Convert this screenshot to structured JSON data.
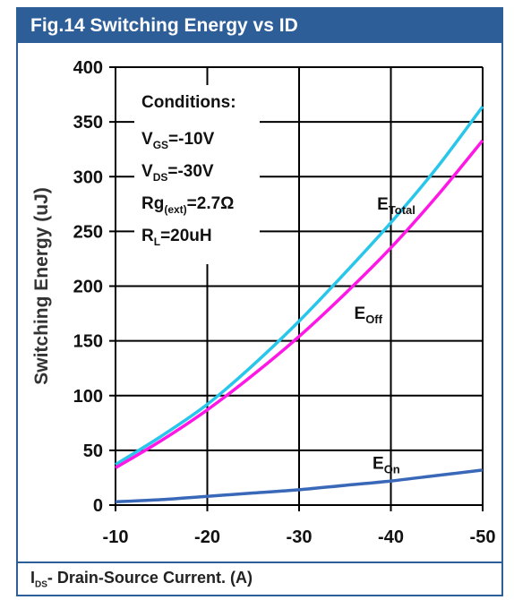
{
  "figure": {
    "title": "Fig.14 Switching Energy vs ID",
    "footer_main": "I",
    "footer_sub": "DS",
    "footer_rest": "- Drain-Source Current. (A)"
  },
  "chart_data": {
    "type": "line",
    "ylabel": "Switching Energy (uJ)",
    "xlabel": "I_DS- Drain-Source Current. (A)",
    "xlim": [
      -10,
      -50
    ],
    "ylim": [
      0,
      400
    ],
    "x_ticks": [
      -10,
      -20,
      -30,
      -40,
      -50
    ],
    "y_ticks": [
      0,
      50,
      100,
      150,
      200,
      250,
      300,
      350,
      400
    ],
    "grid": true,
    "conditions": {
      "heading": "Conditions:",
      "lines": [
        {
          "main": "V",
          "sub": "GS",
          "rest": "=-10V"
        },
        {
          "main": "V",
          "sub": "DS",
          "rest": "=-30V"
        },
        {
          "main": "Rg",
          "sub": "(ext)",
          "rest": "=2.7Ω"
        },
        {
          "main": "R",
          "sub": "L",
          "rest": "=20uH"
        }
      ]
    },
    "series": [
      {
        "name": "E_Total",
        "label_main": "E",
        "label_sub": "Total",
        "color": "#27c6ea",
        "x": [
          -10,
          -15,
          -20,
          -25,
          -30,
          -35,
          -40,
          -45,
          -50
        ],
        "y": [
          37,
          63,
          92,
          128,
          168,
          212,
          258,
          308,
          364
        ],
        "label_at": [
          -38.5,
          270
        ]
      },
      {
        "name": "E_Off",
        "label_main": "E",
        "label_sub": "Off",
        "color": "#ff17e6",
        "x": [
          -10,
          -15,
          -20,
          -25,
          -30,
          -35,
          -40,
          -45,
          -50
        ],
        "y": [
          34,
          59,
          87,
          119,
          154,
          193,
          235,
          282,
          333
        ],
        "label_at": [
          -36,
          170
        ]
      },
      {
        "name": "E_On",
        "label_main": "E",
        "label_sub": "On",
        "color": "#3a68b8",
        "x": [
          -10,
          -15,
          -20,
          -25,
          -30,
          -35,
          -40,
          -45,
          -50
        ],
        "y": [
          3,
          5,
          8,
          11,
          14,
          18,
          22,
          27,
          32
        ],
        "label_at": [
          -38,
          33
        ]
      }
    ]
  }
}
